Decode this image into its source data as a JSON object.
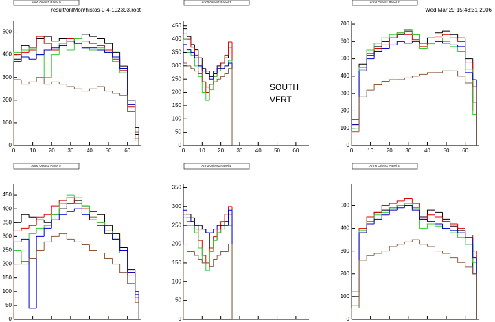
{
  "file_label": "result/onlMon/histos-0-4-192393.root",
  "timestamp": "Wed Mar 29 15:43:31 2006",
  "annotations": [
    "SOUTH",
    "VERT"
  ],
  "chart_data": [
    {
      "type": "histogram",
      "title": "Arm0 Orient1 Panel 0",
      "bins": [
        0,
        4,
        8,
        12,
        16,
        20,
        24,
        28,
        32,
        36,
        40,
        44,
        48,
        52,
        56,
        60,
        64,
        66
      ],
      "xlim": [
        0,
        67
      ],
      "xticks": [
        0,
        10,
        20,
        30,
        40,
        50,
        60
      ],
      "ylim": [
        0,
        550
      ],
      "yticks": [
        0,
        100,
        200,
        300,
        400,
        500
      ],
      "series": [
        {
          "color": "#000000",
          "values": [
            380,
            440,
            430,
            470,
            480,
            460,
            470,
            460,
            470,
            490,
            480,
            470,
            450,
            410,
            350,
            200,
            50
          ]
        },
        {
          "color": "#dd0000",
          "values": [
            400,
            410,
            420,
            480,
            450,
            420,
            440,
            470,
            450,
            460,
            450,
            440,
            420,
            380,
            330,
            170,
            30
          ]
        },
        {
          "color": "#33cc33",
          "values": [
            410,
            420,
            430,
            400,
            300,
            400,
            450,
            420,
            470,
            430,
            420,
            430,
            410,
            370,
            320,
            150,
            20
          ]
        },
        {
          "color": "#0000cc",
          "values": [
            370,
            390,
            380,
            400,
            420,
            430,
            440,
            460,
            450,
            430,
            430,
            420,
            410,
            390,
            340,
            180,
            80
          ]
        },
        {
          "color": "#8b5a3c",
          "values": [
            290,
            270,
            280,
            300,
            270,
            280,
            270,
            260,
            250,
            240,
            250,
            260,
            240,
            230,
            220,
            150,
            60
          ]
        }
      ]
    },
    {
      "type": "histogram",
      "title": "Arm0 Orient1 Panel 1",
      "bins": [
        0,
        2,
        4,
        6,
        8,
        10,
        12,
        14,
        16,
        18,
        20,
        22,
        24,
        26
      ],
      "xlim": [
        0,
        67
      ],
      "xticks": [
        0,
        10,
        20,
        30,
        40,
        50,
        60
      ],
      "ylim": [
        0,
        470
      ],
      "yticks": [
        0,
        50,
        100,
        150,
        200,
        250,
        300,
        350,
        400,
        450
      ],
      "series": [
        {
          "color": "#000000",
          "values": [
            440,
            410,
            380,
            360,
            330,
            290,
            280,
            260,
            280,
            300,
            310,
            330,
            370
          ]
        },
        {
          "color": "#dd0000",
          "values": [
            420,
            400,
            370,
            340,
            300,
            240,
            200,
            230,
            260,
            290,
            310,
            340,
            390
          ]
        },
        {
          "color": "#33cc33",
          "values": [
            400,
            350,
            340,
            300,
            260,
            200,
            170,
            210,
            260,
            280,
            290,
            300,
            320
          ]
        },
        {
          "color": "#0000cc",
          "values": [
            380,
            360,
            350,
            330,
            300,
            280,
            270,
            250,
            270,
            290,
            290,
            300,
            310
          ]
        },
        {
          "color": "#8b5a3c",
          "values": [
            310,
            300,
            290,
            280,
            270,
            240,
            220,
            230,
            240,
            250,
            260,
            270,
            290
          ]
        }
      ]
    },
    {
      "type": "histogram",
      "title": "Arm0 Orient1 Panel 2",
      "bins": [
        0,
        4,
        8,
        12,
        16,
        20,
        24,
        28,
        32,
        36,
        40,
        44,
        48,
        52,
        56,
        60,
        64,
        66
      ],
      "xlim": [
        0,
        67
      ],
      "xticks": [
        0,
        10,
        20,
        30,
        40,
        50,
        60
      ],
      "ylim": [
        0,
        720
      ],
      "yticks": [
        0,
        100,
        200,
        300,
        400,
        500,
        600,
        700
      ],
      "series": [
        {
          "color": "#000000",
          "values": [
            150,
            470,
            530,
            570,
            600,
            620,
            640,
            660,
            640,
            590,
            620,
            650,
            660,
            640,
            620,
            500,
            250
          ]
        },
        {
          "color": "#dd0000",
          "values": [
            120,
            440,
            520,
            560,
            580,
            620,
            650,
            640,
            610,
            570,
            590,
            630,
            640,
            620,
            600,
            480,
            200
          ]
        },
        {
          "color": "#33cc33",
          "values": [
            100,
            450,
            550,
            590,
            620,
            640,
            650,
            670,
            640,
            560,
            580,
            620,
            600,
            570,
            540,
            440,
            180
          ]
        },
        {
          "color": "#0000cc",
          "values": [
            120,
            430,
            500,
            540,
            560,
            580,
            600,
            590,
            600,
            590,
            590,
            600,
            590,
            580,
            570,
            420,
            380
          ]
        },
        {
          "color": "#8b5a3c",
          "values": [
            80,
            280,
            320,
            350,
            370,
            380,
            380,
            390,
            400,
            410,
            420,
            420,
            430,
            430,
            400,
            360,
            340
          ]
        }
      ]
    },
    {
      "type": "histogram",
      "title": "Arm0 Orient1 Panel 5",
      "bins": [
        0,
        4,
        8,
        12,
        16,
        20,
        24,
        28,
        32,
        36,
        40,
        44,
        48,
        52,
        56,
        60,
        64,
        66
      ],
      "xlim": [
        0,
        67
      ],
      "xticks": [
        0,
        10,
        20,
        30,
        40,
        50,
        60
      ],
      "ylim": [
        0,
        490
      ],
      "yticks": [
        0,
        50,
        100,
        150,
        200,
        250,
        300,
        350,
        400,
        450
      ],
      "series": [
        {
          "color": "#000000",
          "values": [
            350,
            380,
            370,
            360,
            350,
            380,
            400,
            420,
            430,
            410,
            390,
            380,
            340,
            310,
            260,
            180,
            100
          ]
        },
        {
          "color": "#dd0000",
          "values": [
            320,
            330,
            340,
            370,
            380,
            410,
            430,
            440,
            420,
            400,
            370,
            350,
            320,
            290,
            250,
            170,
            80
          ]
        },
        {
          "color": "#33cc33",
          "values": [
            250,
            200,
            310,
            330,
            340,
            380,
            420,
            450,
            440,
            410,
            370,
            350,
            320,
            290,
            240,
            160,
            60
          ]
        },
        {
          "color": "#0000cc",
          "values": [
            280,
            290,
            40,
            300,
            330,
            360,
            380,
            390,
            400,
            380,
            360,
            340,
            310,
            290,
            250,
            170,
            90
          ]
        },
        {
          "color": "#8b5a3c",
          "values": [
            200,
            210,
            220,
            250,
            280,
            300,
            310,
            290,
            280,
            270,
            250,
            240,
            220,
            200,
            170,
            130,
            60
          ]
        }
      ]
    },
    {
      "type": "histogram",
      "title": "Arm0 Orient1 Panel 4",
      "bins": [
        0,
        2,
        4,
        6,
        8,
        10,
        12,
        14,
        16,
        18,
        20,
        22,
        24,
        26
      ],
      "xlim": [
        0,
        67
      ],
      "xticks": [
        0,
        10,
        20,
        30,
        40,
        50,
        60
      ],
      "ylim": [
        0,
        360
      ],
      "yticks": [
        0,
        50,
        100,
        150,
        200,
        250,
        300,
        350
      ],
      "series": [
        {
          "color": "#000000",
          "values": [
            300,
            280,
            270,
            250,
            250,
            240,
            230,
            190,
            210,
            230,
            250,
            260,
            280
          ]
        },
        {
          "color": "#dd0000",
          "values": [
            280,
            260,
            260,
            240,
            210,
            170,
            150,
            190,
            220,
            240,
            260,
            280,
            300
          ]
        },
        {
          "color": "#33cc33",
          "values": [
            270,
            250,
            250,
            230,
            190,
            150,
            130,
            180,
            210,
            230,
            240,
            250,
            250
          ]
        },
        {
          "color": "#0000cc",
          "values": [
            290,
            270,
            260,
            250,
            240,
            240,
            230,
            230,
            240,
            250,
            250,
            250,
            290
          ]
        },
        {
          "color": "#8b5a3c",
          "values": [
            200,
            180,
            180,
            170,
            160,
            150,
            150,
            140,
            160,
            170,
            180,
            180,
            200
          ]
        }
      ]
    },
    {
      "type": "histogram",
      "title": "Arm0 Orient1 Panel 3",
      "bins": [
        0,
        4,
        8,
        12,
        16,
        20,
        24,
        28,
        32,
        36,
        40,
        44,
        48,
        52,
        56,
        60,
        64,
        66
      ],
      "xlim": [
        0,
        67
      ],
      "xticks": [
        0,
        10,
        20,
        30,
        40,
        50,
        60
      ],
      "ylim": [
        0,
        595
      ],
      "yticks": [
        0,
        100,
        200,
        300,
        400,
        500
      ],
      "series": [
        {
          "color": "#000000",
          "values": [
            100,
            380,
            430,
            470,
            480,
            490,
            500,
            500,
            490,
            450,
            480,
            470,
            440,
            410,
            390,
            330,
            200
          ]
        },
        {
          "color": "#dd0000",
          "values": [
            80,
            400,
            450,
            470,
            500,
            510,
            520,
            530,
            510,
            440,
            460,
            450,
            430,
            420,
            400,
            370,
            300
          ]
        },
        {
          "color": "#33cc33",
          "values": [
            60,
            390,
            430,
            460,
            470,
            490,
            500,
            510,
            490,
            400,
            420,
            410,
            400,
            380,
            360,
            330,
            250
          ]
        },
        {
          "color": "#0000cc",
          "values": [
            120,
            380,
            420,
            440,
            460,
            480,
            490,
            500,
            480,
            440,
            430,
            420,
            400,
            390,
            380,
            360,
            270
          ]
        },
        {
          "color": "#8b5a3c",
          "values": [
            50,
            260,
            280,
            290,
            300,
            320,
            330,
            340,
            350,
            330,
            320,
            300,
            290,
            270,
            250,
            230,
            200
          ]
        }
      ]
    }
  ]
}
